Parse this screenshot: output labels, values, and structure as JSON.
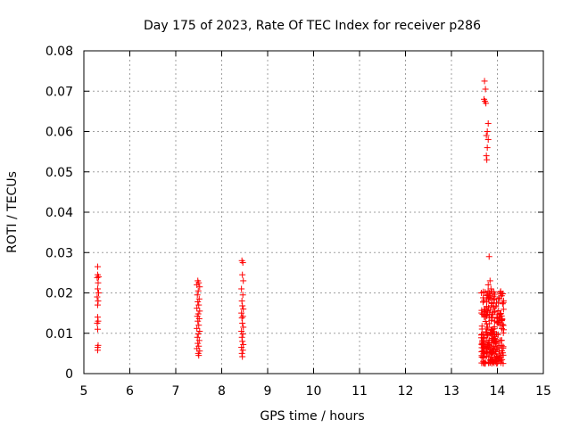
{
  "chart_data": {
    "type": "scatter",
    "title": "Day 175 of 2023, Rate Of TEC Index for receiver p286",
    "xlabel": "GPS time / hours",
    "ylabel": "ROTI / TECUs",
    "xlim": [
      5,
      15
    ],
    "ylim": [
      0,
      0.08
    ],
    "x_ticks": [
      "5",
      "6",
      "7",
      "8",
      "9",
      "10",
      "11",
      "12",
      "13",
      "14",
      "15"
    ],
    "y_ticks": [
      "0",
      "0.01",
      "0.02",
      "0.03",
      "0.04",
      "0.05",
      "0.06",
      "0.07",
      "0.08"
    ],
    "grid": true,
    "marker": "plus",
    "color": "#ff0000",
    "points": [
      [
        5.3,
        0.0265
      ],
      [
        5.3,
        0.0245
      ],
      [
        5.32,
        0.024
      ],
      [
        5.29,
        0.0238
      ],
      [
        5.31,
        0.0225
      ],
      [
        5.3,
        0.021
      ],
      [
        5.32,
        0.02
      ],
      [
        5.29,
        0.019
      ],
      [
        5.31,
        0.018
      ],
      [
        5.3,
        0.017
      ],
      [
        5.3,
        0.014
      ],
      [
        5.31,
        0.013
      ],
      [
        5.29,
        0.0125
      ],
      [
        5.3,
        0.011
      ],
      [
        5.31,
        0.007
      ],
      [
        5.3,
        0.0065
      ],
      [
        5.3,
        0.0058
      ],
      [
        7.48,
        0.023
      ],
      [
        7.5,
        0.0225
      ],
      [
        7.46,
        0.022
      ],
      [
        7.52,
        0.0215
      ],
      [
        7.49,
        0.0205
      ],
      [
        7.47,
        0.0195
      ],
      [
        7.51,
        0.0185
      ],
      [
        7.48,
        0.0178
      ],
      [
        7.5,
        0.017
      ],
      [
        7.46,
        0.0162
      ],
      [
        7.52,
        0.0155
      ],
      [
        7.49,
        0.0148
      ],
      [
        7.47,
        0.0142
      ],
      [
        7.51,
        0.0136
      ],
      [
        7.48,
        0.013
      ],
      [
        7.5,
        0.012
      ],
      [
        7.46,
        0.0112
      ],
      [
        7.52,
        0.0105
      ],
      [
        7.49,
        0.0098
      ],
      [
        7.47,
        0.009
      ],
      [
        7.51,
        0.0082
      ],
      [
        7.48,
        0.0075
      ],
      [
        7.5,
        0.0068
      ],
      [
        7.46,
        0.0062
      ],
      [
        7.52,
        0.0056
      ],
      [
        7.49,
        0.005
      ],
      [
        7.5,
        0.0045
      ],
      [
        8.44,
        0.028
      ],
      [
        8.46,
        0.0275
      ],
      [
        8.45,
        0.0245
      ],
      [
        8.47,
        0.023
      ],
      [
        8.43,
        0.021
      ],
      [
        8.46,
        0.0195
      ],
      [
        8.44,
        0.018
      ],
      [
        8.45,
        0.0168
      ],
      [
        8.47,
        0.016
      ],
      [
        8.43,
        0.015
      ],
      [
        8.46,
        0.0142
      ],
      [
        8.44,
        0.0138
      ],
      [
        8.45,
        0.0125
      ],
      [
        8.47,
        0.0115
      ],
      [
        8.43,
        0.0105
      ],
      [
        8.46,
        0.0098
      ],
      [
        8.44,
        0.009
      ],
      [
        8.45,
        0.008
      ],
      [
        8.47,
        0.0072
      ],
      [
        8.43,
        0.0065
      ],
      [
        8.46,
        0.0058
      ],
      [
        8.44,
        0.005
      ],
      [
        8.45,
        0.0042
      ],
      [
        13.72,
        0.0725
      ],
      [
        13.74,
        0.0705
      ],
      [
        13.71,
        0.068
      ],
      [
        13.73,
        0.0675
      ],
      [
        13.75,
        0.067
      ],
      [
        13.8,
        0.062
      ],
      [
        13.78,
        0.06
      ],
      [
        13.76,
        0.059
      ],
      [
        13.8,
        0.058
      ],
      [
        13.78,
        0.056
      ],
      [
        13.76,
        0.054
      ],
      [
        13.77,
        0.053
      ],
      [
        13.82,
        0.029
      ],
      [
        13.84,
        0.023
      ],
      [
        13.8,
        0.022
      ],
      [
        13.86,
        0.021
      ]
    ],
    "dense_cluster": {
      "x_range": [
        13.65,
        14.15
      ],
      "y_range": [
        0.0025,
        0.0205
      ],
      "count": 260
    }
  }
}
